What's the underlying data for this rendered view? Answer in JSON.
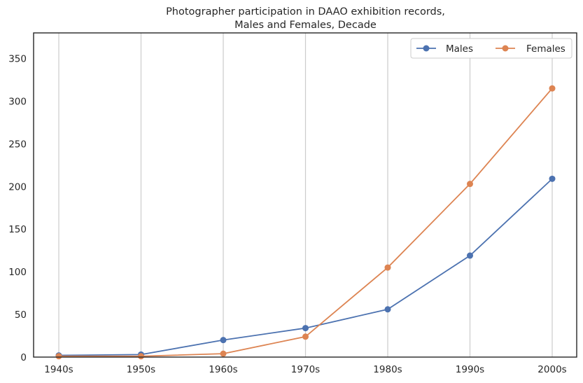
{
  "chart_data": {
    "type": "line",
    "title_line1": "Photographer participation in DAAO exhibition records,",
    "title_line2": "Males and Females, Decade",
    "xlabel": "",
    "ylabel": "",
    "categories": [
      "1940s",
      "1950s",
      "1960s",
      "1970s",
      "1980s",
      "1990s",
      "2000s"
    ],
    "ylim": [
      0,
      380
    ],
    "yticks": [
      0,
      50,
      100,
      150,
      200,
      250,
      300,
      350
    ],
    "grid": "vertical",
    "legend_position": "top-right",
    "series": [
      {
        "name": "Males",
        "color": "#4c72b0",
        "values": [
          2,
          3,
          20,
          34,
          56,
          119,
          209
        ]
      },
      {
        "name": "Females",
        "color": "#dd8452",
        "values": [
          1,
          1,
          4,
          24,
          105,
          203,
          315
        ]
      }
    ]
  }
}
